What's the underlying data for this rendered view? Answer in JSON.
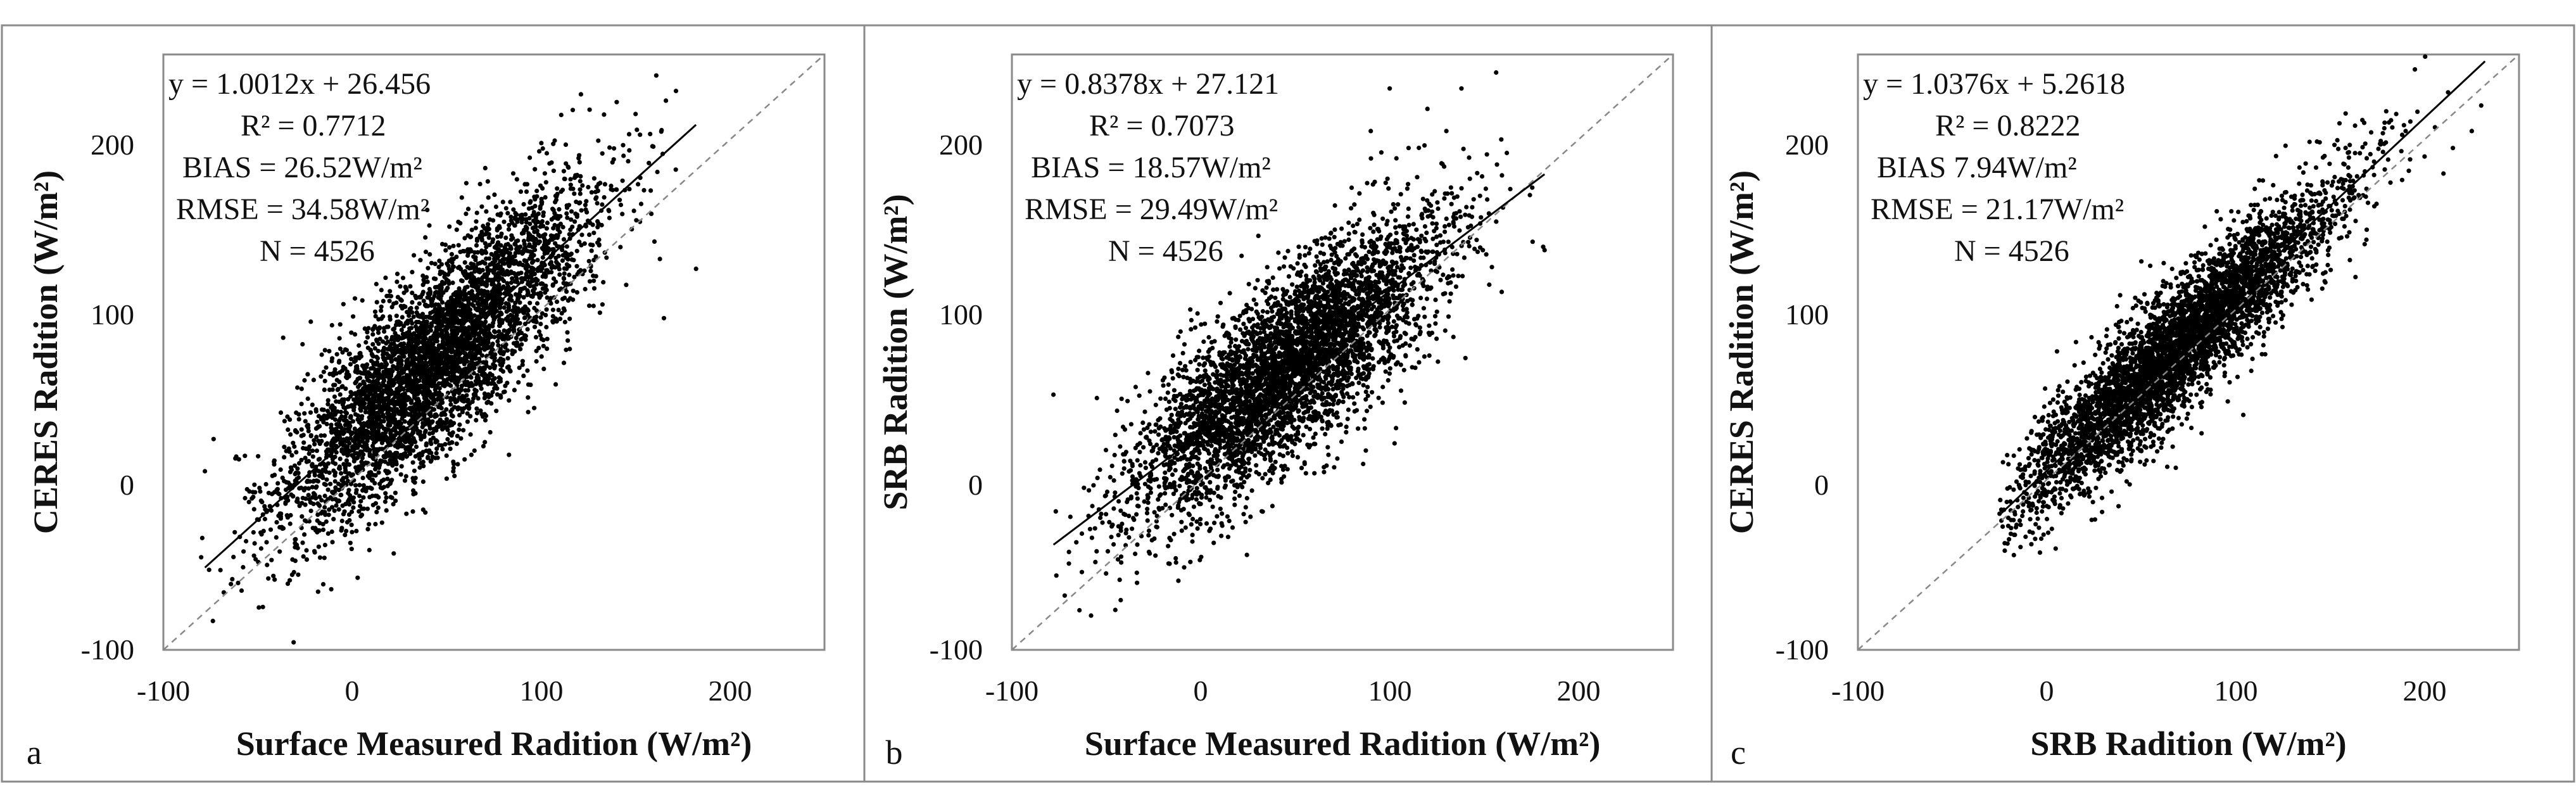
{
  "figure": {
    "panels_count": 3,
    "border_color": "#8a8a8a",
    "point_color": "#000000",
    "fit_line_color": "#000000",
    "identity_line_color": "#888888"
  },
  "chart_data": [
    {
      "type": "scatter",
      "panel_label": "a",
      "xlabel": "Surface Measured Radition (W/m²)",
      "ylabel": "CERES Radition (W/m²)",
      "xlim": [
        -100,
        250
      ],
      "ylim": [
        -100,
        250
      ],
      "xticks": [
        -100,
        0,
        100,
        200
      ],
      "yticks": [
        -100,
        0,
        100,
        200
      ],
      "xtick_labels": [
        "-100",
        "0",
        "100",
        "200"
      ],
      "ytick_labels": [
        "-100",
        "0",
        "100",
        "200"
      ],
      "n_points": 4526,
      "fit": {
        "slope": 1.0012,
        "intercept": 26.456,
        "x_range": [
          -78,
          182
        ]
      },
      "identity_line": true,
      "scatter_model": {
        "x_center": 45,
        "x_spread": 40,
        "x_min": -80,
        "x_max": 185,
        "noise": 28,
        "seed": 11
      },
      "outlier_points": [
        {
          "x": -78,
          "y": 5
        },
        {
          "x": -60,
          "y": 12
        },
        {
          "x": 182,
          "y": 124
        },
        {
          "x": 150,
          "y": 215
        },
        {
          "x": 140,
          "y": 222
        },
        {
          "x": 158,
          "y": 170
        },
        {
          "x": 160,
          "y": 140
        },
        {
          "x": 165,
          "y": 95
        },
        {
          "x": -40,
          "y": -25
        },
        {
          "x": -30,
          "y": -35
        }
      ],
      "annotations": {
        "equation": "y = 1.0012x + 26.456",
        "r2": "R² = 0.7712",
        "bias": "BIAS = 26.52W/m²",
        "rmse": "RMSE = 34.58W/m²",
        "n": "N = 4526"
      }
    },
    {
      "type": "scatter",
      "panel_label": "b",
      "xlabel": "Surface Measured Radition (W/m²)",
      "ylabel": "SRB Radition (W/m²)",
      "xlim": [
        -100,
        250
      ],
      "ylim": [
        -100,
        250
      ],
      "xticks": [
        -100,
        0,
        100,
        200
      ],
      "yticks": [
        -100,
        0,
        100,
        200
      ],
      "xtick_labels": [
        "-100",
        "0",
        "100",
        "200"
      ],
      "ytick_labels": [
        "-100",
        "0",
        "100",
        "200"
      ],
      "n_points": 4526,
      "fit": {
        "slope": 0.8378,
        "intercept": 27.121,
        "x_range": [
          -78,
          182
        ]
      },
      "identity_line": true,
      "scatter_model": {
        "x_center": 45,
        "x_spread": 40,
        "x_min": -80,
        "x_max": 185,
        "noise": 26,
        "seed": 23
      },
      "outlier_points": [
        {
          "x": -78,
          "y": 50
        },
        {
          "x": -55,
          "y": 48
        },
        {
          "x": 182,
          "y": 135
        },
        {
          "x": 100,
          "y": 230
        },
        {
          "x": 138,
          "y": 230
        },
        {
          "x": 120,
          "y": 218
        },
        {
          "x": 130,
          "y": 205
        },
        {
          "x": 160,
          "y": 160
        },
        {
          "x": 90,
          "y": 205
        },
        {
          "x": 110,
          "y": 195
        }
      ],
      "annotations": {
        "equation": "y = 0.8378x + 27.121",
        "r2": "R² = 0.7073",
        "bias": "BIAS = 18.57W/m²",
        "rmse": "RMSE = 29.49W/m²",
        "n": "N = 4526"
      }
    },
    {
      "type": "scatter",
      "panel_label": "c",
      "xlabel": "SRB Radition (W/m²)",
      "ylabel": "CERES Radition (W/m²)",
      "xlim": [
        -100,
        250
      ],
      "ylim": [
        -100,
        250
      ],
      "xticks": [
        -100,
        0,
        100,
        200
      ],
      "yticks": [
        -100,
        0,
        100,
        200
      ],
      "xtick_labels": [
        "-100",
        "0",
        "100",
        "200"
      ],
      "ytick_labels": [
        "-100",
        "0",
        "100",
        "200"
      ],
      "n_points": 4526,
      "fit": {
        "slope": 1.0376,
        "intercept": 5.2618,
        "x_range": [
          -25,
          232
        ]
      },
      "identity_line": true,
      "scatter_model": {
        "x_center": 70,
        "x_spread": 42,
        "x_min": -25,
        "x_max": 230,
        "noise": 19,
        "seed": 37
      },
      "outlier_points": [
        {
          "x": 230,
          "y": 220
        },
        {
          "x": 225,
          "y": 205
        },
        {
          "x": 215,
          "y": 195
        },
        {
          "x": 210,
          "y": 180
        },
        {
          "x": 200,
          "y": 190
        },
        {
          "x": 185,
          "y": 215
        },
        {
          "x": 190,
          "y": 205
        },
        {
          "x": -25,
          "y": -20
        },
        {
          "x": -20,
          "y": -35
        }
      ],
      "annotations": {
        "equation": "y = 1.0376x + 5.2618",
        "r2": "R² = 0.8222",
        "bias": "BIAS  7.94W/m²",
        "rmse": "RMSE = 21.17W/m²",
        "n": "N = 4526"
      }
    }
  ]
}
